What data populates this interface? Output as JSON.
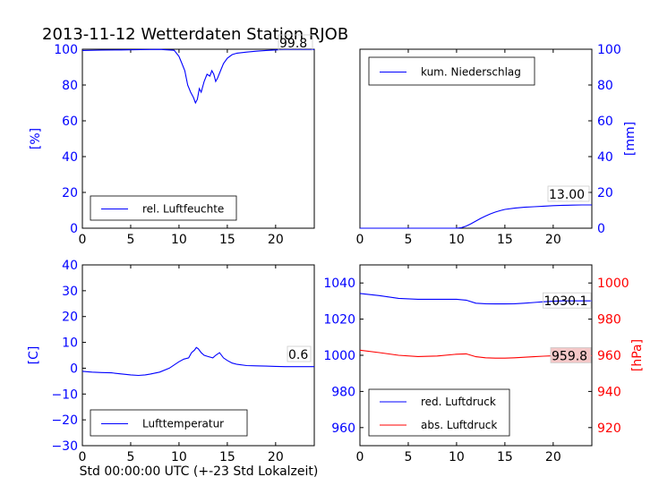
{
  "figure": {
    "title": "2013-11-12 Wetterdaten Station RJOB",
    "xlabel": "Std 00:00:00 UTC (+-23 Std Lokalzeit)"
  },
  "chart_data": [
    {
      "id": "humidity",
      "type": "line",
      "ylabel": "[%]",
      "xlim": [
        0,
        24
      ],
      "ylim": [
        0,
        100
      ],
      "xticks": [
        "0",
        "5",
        "10",
        "15",
        "20"
      ],
      "yticks": [
        "0",
        "20",
        "40",
        "60",
        "80",
        "100"
      ],
      "legend": {
        "placement": "lower-left"
      },
      "series": [
        {
          "name": "rel. Luftfeuchte",
          "color": "#0000ff",
          "x": [
            0,
            2,
            4,
            6,
            8,
            9.5,
            10,
            10.3,
            10.6,
            10.9,
            11.2,
            11.5,
            11.7,
            11.9,
            12.1,
            12.3,
            12.6,
            12.9,
            13.2,
            13.4,
            13.6,
            13.8,
            14.0,
            14.3,
            14.6,
            15,
            15.5,
            16,
            17,
            18,
            19,
            20,
            21,
            22,
            23,
            24
          ],
          "y": [
            99.3,
            99.5,
            99.6,
            99.8,
            99.9,
            99.4,
            96,
            92,
            88,
            80,
            76,
            73,
            70,
            72,
            78,
            76,
            82,
            86,
            85,
            88,
            86,
            82,
            84,
            88,
            92,
            95,
            97,
            97.8,
            98.4,
            98.9,
            99.3,
            99.6,
            99.8,
            99.8,
            99.8,
            99.8
          ]
        }
      ],
      "annotation": "99.8"
    },
    {
      "id": "precipitation",
      "type": "line",
      "ylabel": "[mm]",
      "xlim": [
        0,
        24
      ],
      "ylim": [
        0,
        100
      ],
      "xticks": [
        "0",
        "5",
        "10",
        "15",
        "20"
      ],
      "yticks": [
        "0",
        "20",
        "40",
        "60",
        "80",
        "100"
      ],
      "legend": {
        "placement": "upper-left"
      },
      "series": [
        {
          "name": "kum. Niederschlag",
          "color": "#0000ff",
          "x": [
            0,
            5,
            10,
            10.5,
            11,
            11.5,
            12,
            12.5,
            13,
            13.5,
            14,
            14.5,
            15,
            16,
            17,
            18,
            19,
            20,
            21,
            22,
            23,
            24
          ],
          "y": [
            0,
            0,
            0,
            0.3,
            1.2,
            2.5,
            4,
            5.5,
            6.8,
            8,
            9,
            9.8,
            10.5,
            11.2,
            11.7,
            12,
            12.3,
            12.6,
            12.8,
            12.9,
            13,
            13
          ]
        }
      ],
      "annotation": "13.00"
    },
    {
      "id": "temperature",
      "type": "line",
      "ylabel": "[C]",
      "xlim": [
        0,
        24
      ],
      "ylim": [
        -30,
        40
      ],
      "xticks": [
        "0",
        "5",
        "10",
        "15",
        "20"
      ],
      "yticks": [
        "−30",
        "−20",
        "−10",
        "0",
        "10",
        "20",
        "30",
        "40"
      ],
      "legend": {
        "placement": "lower-left"
      },
      "series": [
        {
          "name": "Lufttemperatur",
          "color": "#0000ff",
          "x": [
            0,
            1,
            2,
            3,
            4,
            5,
            5.8,
            6.5,
            7,
            8,
            9,
            10,
            10.5,
            11,
            11.3,
            11.6,
            11.8,
            12,
            12.3,
            12.6,
            13,
            13.5,
            13.8,
            14.2,
            14.6,
            15,
            15.5,
            16,
            17,
            18,
            19,
            20,
            21,
            22,
            23,
            24
          ],
          "y": [
            -1.2,
            -1.5,
            -1.7,
            -1.8,
            -2.2,
            -2.6,
            -2.8,
            -2.6,
            -2.3,
            -1.5,
            0,
            2.5,
            3.5,
            4,
            6,
            7,
            8,
            7.5,
            6,
            5,
            4.5,
            4,
            5,
            6,
            4,
            3,
            2,
            1.5,
            1,
            0.9,
            0.8,
            0.7,
            0.6,
            0.6,
            0.6,
            0.6
          ]
        }
      ],
      "annotation": "0.6"
    },
    {
      "id": "pressure",
      "type": "line",
      "xlim": [
        0,
        24
      ],
      "xticks": [
        "0",
        "5",
        "10",
        "15",
        "20"
      ],
      "y_left": {
        "lim": [
          950,
          1050
        ],
        "ticks": [
          "960",
          "980",
          "1000",
          "1020",
          "1040"
        ],
        "color": "#0000ff"
      },
      "y_right": {
        "label": "[hPa]",
        "lim": [
          910,
          1010
        ],
        "ticks": [
          "920",
          "940",
          "960",
          "980",
          "1000"
        ],
        "color": "#ff0000"
      },
      "legend": {
        "placement": "lower-left"
      },
      "series": [
        {
          "name": "red. Luftdruck",
          "color": "#0000ff",
          "axis": "left",
          "x": [
            0,
            2,
            4,
            6,
            8,
            10,
            11,
            12,
            13,
            14,
            15,
            16,
            17,
            18,
            19,
            20,
            21,
            22,
            23,
            24
          ],
          "y": [
            1034.2,
            1033,
            1031.5,
            1031,
            1031,
            1031,
            1030.5,
            1028.8,
            1028.5,
            1028.4,
            1028.4,
            1028.5,
            1028.8,
            1029.2,
            1029.6,
            1029.9,
            1030.1,
            1030.1,
            1030.1,
            1030.1
          ]
        },
        {
          "name": "abs. Luftdruck",
          "color": "#ff0000",
          "axis": "right",
          "x": [
            0,
            2,
            4,
            6,
            8,
            10,
            11,
            12,
            13,
            14,
            15,
            16,
            17,
            18,
            19,
            20,
            21,
            22,
            23,
            24
          ],
          "y": [
            962.8,
            961.5,
            960,
            959.3,
            959.6,
            960.6,
            960.8,
            959.2,
            958.6,
            958.4,
            958.4,
            958.6,
            958.9,
            959.2,
            959.5,
            959.7,
            959.8,
            959.8,
            959.8,
            959.8
          ]
        }
      ],
      "annotations": [
        {
          "text": "1030.1",
          "series": "red. Luftdruck"
        },
        {
          "text": "959.8",
          "series": "abs. Luftdruck",
          "background": "#f4c8c8"
        }
      ]
    }
  ]
}
